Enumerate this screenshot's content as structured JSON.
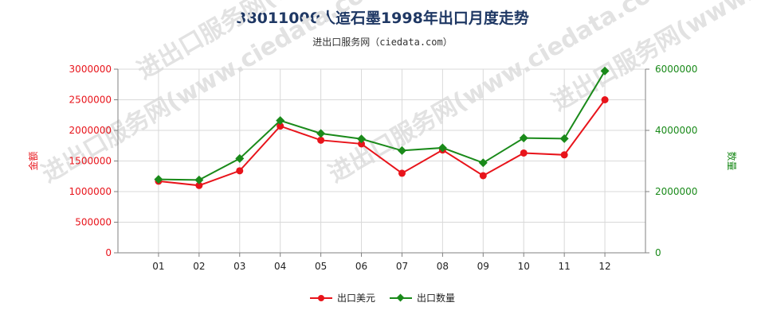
{
  "title": "38011000人造石墨1998年出口月度走势",
  "subtitle": "进出口服务网（ciedata.com）",
  "watermark": "进出口服务网(www.ciedata.com)",
  "colors": {
    "usd": "#e8141b",
    "qty": "#1a8a1a",
    "grid": "#d9d9d9",
    "axis": "#808080"
  },
  "chart_data": {
    "type": "line",
    "categories": [
      "01",
      "02",
      "03",
      "04",
      "05",
      "06",
      "07",
      "08",
      "09",
      "10",
      "11",
      "12"
    ],
    "series": [
      {
        "name": "出口美元",
        "axis": "left",
        "color": "#e8141b",
        "marker": "circle",
        "values": [
          1170000,
          1100000,
          1340000,
          2070000,
          1840000,
          1780000,
          1300000,
          1680000,
          1260000,
          1630000,
          1600000,
          2500000
        ]
      },
      {
        "name": "出口数量",
        "axis": "right",
        "color": "#1a8a1a",
        "marker": "diamond",
        "values": [
          2400000,
          2380000,
          3080000,
          4320000,
          3900000,
          3720000,
          3340000,
          3430000,
          2940000,
          3750000,
          3730000,
          5940000
        ]
      }
    ],
    "y_left": {
      "label": "金额",
      "min": 0,
      "max": 3000000,
      "ticks": [
        "0",
        "500000",
        "1000000",
        "1500000",
        "2000000",
        "2500000",
        "3000000"
      ]
    },
    "y_right": {
      "label": "数量",
      "min": 0,
      "max": 6000000,
      "ticks": [
        "0",
        "2000000",
        "4000000",
        "6000000"
      ]
    },
    "grid": true,
    "legend_position": "bottom"
  }
}
